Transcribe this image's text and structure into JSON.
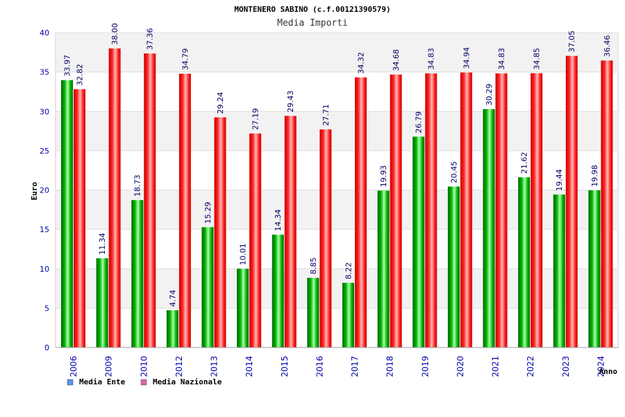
{
  "chart_data": {
    "type": "bar",
    "title": "MONTENERO SABINO (c.f.00121390579)",
    "subtitle": "Media Importi",
    "xlabel": "Anno",
    "ylabel": "Euro",
    "ylim": [
      0,
      40
    ],
    "yticks": [
      0,
      5,
      10,
      15,
      20,
      25,
      30,
      35,
      40
    ],
    "grid": true,
    "legend_position": "bottom-left",
    "categories": [
      "2006",
      "2009",
      "2010",
      "2012",
      "2013",
      "2014",
      "2015",
      "2016",
      "2017",
      "2018",
      "2019",
      "2020",
      "2021",
      "2022",
      "2023",
      "2024"
    ],
    "series": [
      {
        "name": "Media Ente",
        "color": "#00aa00",
        "legend_color": "#5599ee",
        "values": [
          33.97,
          11.34,
          18.73,
          4.74,
          15.29,
          10.01,
          14.34,
          8.85,
          8.22,
          19.93,
          26.79,
          20.45,
          30.29,
          21.62,
          19.44,
          19.98
        ],
        "labels": [
          "33.97",
          "11.34",
          "18.73",
          "4.74",
          "15.29",
          "10.01",
          "14.34",
          "8.85",
          "8.22",
          "19.93",
          "26.79",
          "20.45",
          "30.29",
          "21.62",
          "19.44",
          "19.98"
        ]
      },
      {
        "name": "Media Nazionale",
        "color": "#ee0000",
        "legend_color": "#dd66aa",
        "values": [
          32.82,
          38.0,
          37.36,
          34.79,
          29.24,
          27.19,
          29.43,
          27.71,
          34.32,
          34.68,
          34.83,
          34.94,
          34.83,
          34.85,
          37.05,
          36.46
        ],
        "labels": [
          "32.82",
          "38.00",
          "37.36",
          "34.79",
          "29.24",
          "27.19",
          "29.43",
          "27.71",
          "34.32",
          "34.68",
          "34.83",
          "34.94",
          "34.83",
          "34.85",
          "37.05",
          "36.46"
        ]
      }
    ]
  }
}
